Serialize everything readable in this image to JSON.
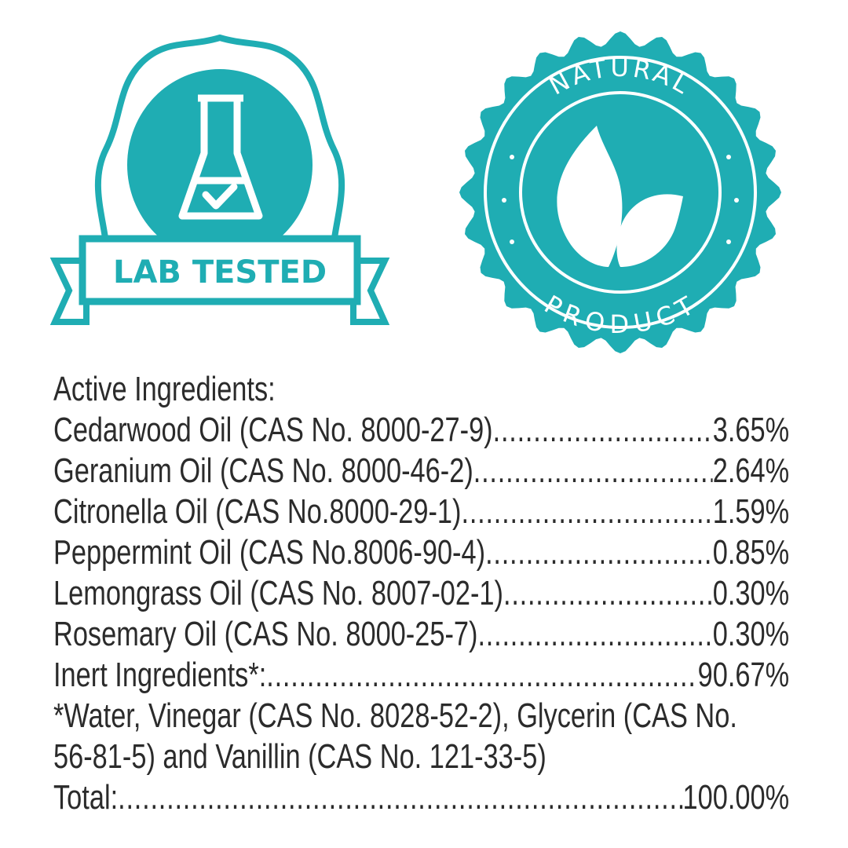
{
  "colors": {
    "teal": "#1fadb3",
    "text": "#2b2b2b"
  },
  "badges": {
    "lab": {
      "label": "LAB TESTED",
      "icon": "flask-check-icon"
    },
    "natural": {
      "top": "NATURAL",
      "bottom": "PRODUCT",
      "icon": "leaves-icon"
    }
  },
  "ingredients": {
    "heading": "Active Ingredients:",
    "rows": [
      {
        "name": "Cedarwood Oil (CAS No. 8000-27-9) ",
        "value": "3.65%"
      },
      {
        "name": "Geranium Oil (CAS No. 8000-46-2) ",
        "value": "2.64%"
      },
      {
        "name": "Citronella Oil (CAS No.8000-29-1)",
        "value": "1.59%"
      },
      {
        "name": "Peppermint Oil (CAS No.8006-90-4)",
        "value": "0.85%"
      },
      {
        "name": "Lemongrass Oil (CAS No. 8007-02-1)",
        "value": "0.30%"
      },
      {
        "name": "Rosemary Oil (CAS No. 8000-25-7)",
        "value": "0.30%"
      },
      {
        "name": "Inert Ingredients*:",
        "value": "90.67%"
      }
    ],
    "note_line1": "*Water, Vinegar (CAS No. 8028-52-2), Glycerin (CAS No.",
    "note_line2": "56-81-5) and Vanillin (CAS No. 121-33-5)",
    "total": {
      "name": "Total: ",
      "value": "100.00%"
    }
  }
}
